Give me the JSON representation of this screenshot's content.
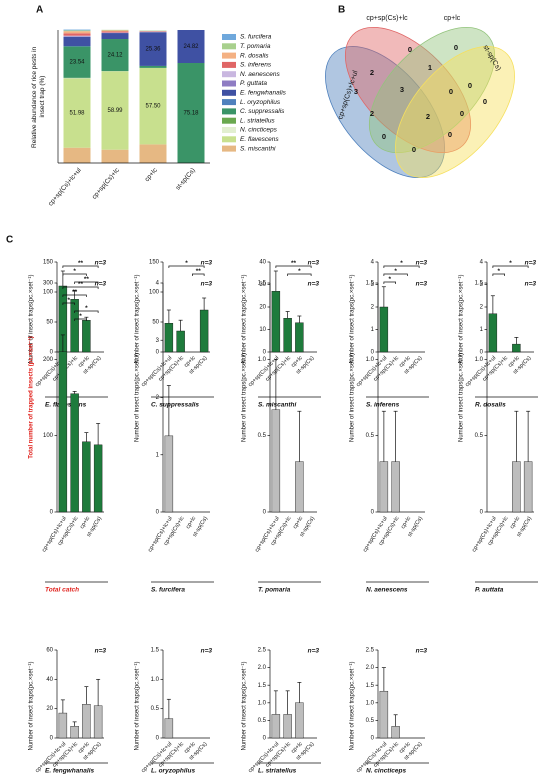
{
  "chart_data": [
    {
      "type": "stacked_bar",
      "panel": "A",
      "ylabel": "Relative abundance of rice pests in insect trap (%)",
      "categories": [
        "cp+sp(Cs)+lc+ul",
        "cp+sp(Cs)+lc",
        "cp+lc",
        "st-sp(Cs)"
      ],
      "ylim": [
        0,
        100
      ],
      "series": [
        {
          "name": "S. furcifera",
          "color": "#6fa8dc",
          "values": [
            0.6,
            0,
            0,
            0
          ]
        },
        {
          "name": "T. pomaria",
          "color": "#a8d08d",
          "values": [
            0.6,
            0.4,
            0.4,
            0
          ]
        },
        {
          "name": "R. dosalis",
          "color": "#f4b183",
          "values": [
            1.6,
            0.8,
            0,
            0
          ]
        },
        {
          "name": "S. inferens",
          "color": "#e06666",
          "values": [
            1.8,
            0.8,
            0.4,
            0
          ]
        },
        {
          "name": "N. aenescens",
          "color": "#c9b7e0",
          "values": [
            0.4,
            0.4,
            0.4,
            0
          ]
        },
        {
          "name": "P. guttata",
          "color": "#8e7cc3",
          "values": [
            0.4,
            0,
            0,
            0
          ]
        },
        {
          "name": "E. fengwhanalis",
          "color": "#3f51a3",
          "values": [
            7.0,
            4.5,
            25.36,
            24.82
          ],
          "value_labels": [
            null,
            null,
            "25.36",
            "24.82"
          ]
        },
        {
          "name": "L. oryzophilus",
          "color": "#4f81bd",
          "values": [
            0.3,
            0,
            0,
            0
          ]
        },
        {
          "name": "C. suppressalis",
          "color": "#3a9467",
          "values": [
            23.54,
            24.12,
            1.5,
            75.18
          ],
          "value_labels": [
            "23.54",
            "24.12",
            null,
            "75.18"
          ]
        },
        {
          "name": "L. striatellus",
          "color": "#6aa84f",
          "values": [
            0.3,
            0,
            0,
            0
          ]
        },
        {
          "name": "N. cincticeps",
          "color": "#e2efd0",
          "values": [
            0.3,
            0.1,
            0,
            0
          ]
        },
        {
          "name": "E. flavescens",
          "color": "#c8e08e",
          "values": [
            51.98,
            58.99,
            57.5,
            0
          ],
          "value_labels": [
            "51.98",
            "58.99",
            "57.50",
            null
          ]
        },
        {
          "name": "S. miscanthi",
          "color": "#e6b883",
          "values": [
            11.5,
            10,
            14,
            0
          ]
        }
      ]
    },
    {
      "type": "venn",
      "panel": "B",
      "sets": [
        {
          "name": "cp+sp(Cs)+lc+ul",
          "color": "#4f81bd"
        },
        {
          "name": "cp+sp(Cs)+lc",
          "color": "#e06666"
        },
        {
          "name": "cp+lc",
          "color": "#93c47d"
        },
        {
          "name": "st-sp(Cs)",
          "color": "#f6e05e"
        }
      ],
      "counts": [
        0,
        0,
        2,
        1,
        0,
        3,
        3,
        0,
        0,
        2,
        2,
        0,
        0,
        0,
        0
      ]
    },
    {
      "type": "bar_error",
      "panel": "C",
      "title": "E. flavescens",
      "ylabel": "Number of insect traps(pc.×set⁻¹)",
      "n_label": "n=3",
      "categories": [
        "cp+sp(Cs)+lc+ul",
        "cp+sp(Cs)+lc",
        "cp+lc",
        "st-sp(Cs)"
      ],
      "values": [
        110,
        88,
        53,
        0
      ],
      "errors": [
        25,
        15,
        5,
        0
      ],
      "ylim": [
        0,
        150
      ],
      "yticks": [
        0,
        50,
        100,
        150
      ],
      "color": "#1e7b3c",
      "comparisons": [
        {
          "pair": [
            0,
            3
          ],
          "label": "**"
        },
        {
          "pair": [
            0,
            2
          ],
          "label": "*"
        },
        {
          "pair": [
            1,
            3
          ],
          "label": "**"
        }
      ]
    },
    {
      "type": "bar_error",
      "title": "C. suppressalis",
      "ylabel": "Number of insect traps(pc.×set⁻¹)",
      "n_label": "n=3",
      "categories": [
        "cp+sp(Cs)+lc+ul",
        "cp+sp(Cs)+lc",
        "cp+lc",
        "st-sp(Cs)"
      ],
      "values": [
        48,
        35,
        0,
        70
      ],
      "errors": [
        22,
        18,
        0,
        20
      ],
      "ylim": [
        0,
        150
      ],
      "yticks": [
        0,
        50,
        100,
        150
      ],
      "color": "#1e7b3c",
      "comparisons": [
        {
          "pair": [
            0,
            3
          ],
          "label": "*"
        },
        {
          "pair": [
            2,
            3
          ],
          "label": "**"
        }
      ]
    },
    {
      "type": "bar_error",
      "title": "S. miscanthi",
      "ylabel": "Number of insect traps(pc.×set⁻¹)",
      "n_label": "n=3",
      "categories": [
        "cp+sp(Cs)+lc+ul",
        "cp+sp(Cs)+lc",
        "cp+lc",
        "st-sp(Cs)"
      ],
      "values": [
        27,
        15,
        13,
        0
      ],
      "errors": [
        9,
        3,
        3,
        0
      ],
      "ylim": [
        0,
        40
      ],
      "yticks": [
        0,
        10,
        20,
        30,
        40
      ],
      "color": "#1e7b3c",
      "comparisons": [
        {
          "pair": [
            0,
            3
          ],
          "label": "**"
        },
        {
          "pair": [
            1,
            3
          ],
          "label": "*"
        }
      ]
    },
    {
      "type": "bar_error",
      "title": "S. inferens",
      "ylabel": "Number of insect traps(pc.×set⁻¹)",
      "n_label": "n=3",
      "categories": [
        "cp+sp(Cs)+lc+ul",
        "cp+sp(Cs)+lc",
        "cp+lc",
        "st-sp(Cs)"
      ],
      "values": [
        2,
        0,
        0,
        0
      ],
      "errors": [
        0.9,
        0,
        0,
        0
      ],
      "ylim": [
        0,
        4
      ],
      "yticks": [
        0,
        1,
        2,
        3,
        4
      ],
      "color": "#1e7b3c",
      "comparisons": [
        {
          "pair": [
            0,
            3
          ],
          "label": "*"
        },
        {
          "pair": [
            0,
            2
          ],
          "label": "*"
        },
        {
          "pair": [
            0,
            1
          ],
          "label": "*"
        }
      ]
    },
    {
      "type": "bar_error",
      "title": "R. dosalis",
      "ylabel": "Number of insect traps(pc.×set⁻¹)",
      "n_label": "n=3",
      "categories": [
        "cp+sp(Cs)+lc+ul",
        "cp+sp(Cs)+lc",
        "cp+lc",
        "st-sp(Cs)"
      ],
      "values": [
        1.7,
        0,
        0.35,
        0
      ],
      "errors": [
        0.8,
        0,
        0.3,
        0
      ],
      "ylim": [
        0,
        4
      ],
      "yticks": [
        0,
        1,
        2,
        3,
        4
      ],
      "color": "#1e7b3c",
      "comparisons": [
        {
          "pair": [
            0,
            3
          ],
          "label": "*"
        },
        {
          "pair": [
            0,
            1
          ],
          "label": "*"
        }
      ]
    },
    {
      "type": "bar_error",
      "title": "Total catch",
      "ylabel": "Total number of trapped insects (pc.×set⁻¹)",
      "n_label": "n=3",
      "text_color": "#e0201b",
      "categories": [
        "cp+sp(Cs)+lc+ul",
        "cp+sp(Cs)+lc",
        "cp+lc",
        "st-sp(Cs)"
      ],
      "values": [
        210,
        155,
        92,
        88
      ],
      "errors": [
        22,
        3,
        12,
        28
      ],
      "ylim": [
        0,
        300
      ],
      "yticks": [
        0,
        100,
        200,
        300
      ],
      "color": "#1e7b3c",
      "comparisons": [
        {
          "pair": [
            0,
            3
          ],
          "label": "**"
        },
        {
          "pair": [
            0,
            2
          ],
          "label": "**"
        },
        {
          "pair": [
            0,
            1
          ],
          "label": "*"
        },
        {
          "pair": [
            1,
            3
          ],
          "label": "*"
        },
        {
          "pair": [
            1,
            2
          ],
          "label": "*"
        }
      ]
    },
    {
      "type": "bar_error",
      "title": "S. furcifera",
      "ylabel": "Number of insect traps(pc.×set⁻¹)",
      "n_label": "n=3",
      "categories": [
        "cp+sp(Cs)+lc+ul",
        "cp+sp(Cs)+lc",
        "cp+lc",
        "st-sp(Cs)"
      ],
      "values": [
        1.33,
        0,
        0,
        0
      ],
      "errors": [
        0.88,
        0,
        0,
        0
      ],
      "ylim": [
        0,
        4
      ],
      "yticks": [
        0,
        1,
        2,
        3,
        4
      ],
      "color": "#bdbdbd",
      "comparisons": []
    },
    {
      "type": "bar_error",
      "title": "T. pomaria",
      "ylabel": "Number of insect traps(pc.×set⁻¹)",
      "n_label": "n=3",
      "categories": [
        "cp+sp(Cs)+lc+ul",
        "cp+sp(Cs)+lc",
        "cp+lc",
        "st-sp(Cs)"
      ],
      "values": [
        0.67,
        0,
        0.33,
        0
      ],
      "errors": [
        0.33,
        0,
        0.33,
        0
      ],
      "ylim": [
        0,
        1.5
      ],
      "yticks": [
        0,
        0.5,
        {
          "value": 1,
          "label": "1.0"
        },
        1.5
      ],
      "color": "#bdbdbd",
      "comparisons": []
    },
    {
      "type": "bar_error",
      "title": "N. aenescens",
      "ylabel": "Number of insect traps(pc.×set⁻¹)",
      "n_label": "n=3",
      "categories": [
        "cp+sp(Cs)+lc+ul",
        "cp+sp(Cs)+lc",
        "cp+lc",
        "st-sp(Cs)"
      ],
      "values": [
        0.33,
        0.33,
        0,
        0
      ],
      "errors": [
        0.33,
        0.33,
        0,
        0
      ],
      "ylim": [
        0,
        1.5
      ],
      "yticks": [
        0,
        0.5,
        {
          "value": 1,
          "label": "1.0"
        },
        1.5
      ],
      "color": "#bdbdbd",
      "comparisons": []
    },
    {
      "type": "bar_error",
      "title": "P. auttata",
      "ylabel": "Number of insect traps(pc.×set⁻¹)",
      "n_label": "n=3",
      "categories": [
        "cp+sp(Cs)+lc+ul",
        "cp+sp(Cs)+lc",
        "cp+lc",
        "st-sp(Cs)"
      ],
      "values": [
        0,
        0,
        0.33,
        0.33
      ],
      "errors": [
        0,
        0,
        0.33,
        0.33
      ],
      "ylim": [
        0,
        1.5
      ],
      "yticks": [
        0,
        0.5,
        {
          "value": 1,
          "label": "1.0"
        },
        1.5
      ],
      "color": "#bdbdbd",
      "comparisons": []
    },
    {
      "type": "bar_error",
      "title": "E. fengwhanalis",
      "ylabel": "Number of insect traps(pc.×set⁻¹)",
      "n_label": "n=3",
      "categories": [
        "cp+sp(Cs)+lc+ul",
        "cp+sp(Cs)+lc",
        "cp+lc",
        "st-sp(Cs)"
      ],
      "values": [
        17,
        8,
        23,
        22
      ],
      "errors": [
        9,
        3,
        12,
        18
      ],
      "ylim": [
        0,
        60
      ],
      "yticks": [
        0,
        20,
        40,
        60
      ],
      "color": "#bdbdbd",
      "comparisons": []
    },
    {
      "type": "bar_error",
      "title": "L. oryzophilus",
      "ylabel": "Number of insect traps(pc.×set⁻¹)",
      "n_label": "n=3",
      "categories": [
        "cp+sp(Cs)+lc+ul",
        "cp+sp(Cs)+lc",
        "cp+lc",
        "st-sp(Cs)"
      ],
      "values": [
        0.33,
        0,
        0,
        0
      ],
      "errors": [
        0.33,
        0,
        0,
        0
      ],
      "ylim": [
        0,
        1.5
      ],
      "yticks": [
        0,
        0.5,
        {
          "value": 1,
          "label": "1.0"
        },
        1.5
      ],
      "color": "#bdbdbd",
      "comparisons": []
    },
    {
      "type": "bar_error",
      "title": "L. striatellus",
      "ylabel": "Number of insect traps(pc.×set⁻¹)",
      "n_label": "n=3",
      "categories": [
        "cp+sp(Cs)+lc+ul",
        "cp+sp(Cs)+lc",
        "cp+lc",
        "st-sp(Cs)"
      ],
      "values": [
        0.67,
        0.67,
        1,
        0
      ],
      "errors": [
        0.67,
        0.67,
        0.58,
        0
      ],
      "ylim": [
        0,
        2.5
      ],
      "yticks": [
        0,
        0.5,
        {
          "value": 1,
          "label": "1.0"
        },
        1.5,
        {
          "value": 2,
          "label": "2.0"
        },
        2.5
      ],
      "color": "#bdbdbd",
      "comparisons": []
    },
    {
      "type": "bar_error",
      "title": "N. cincticeps",
      "ylabel": "Number of insect traps(pc.×set⁻¹)",
      "n_label": "n=3",
      "categories": [
        "cp+sp(Cs)+lc+ul",
        "cp+sp(Cs)+lc",
        "cp+lc",
        "st-sp(Cs)"
      ],
      "values": [
        1.33,
        0.33,
        0,
        0
      ],
      "errors": [
        0.67,
        0.33,
        0,
        0
      ],
      "ylim": [
        0,
        2.5
      ],
      "yticks": [
        0,
        0.5,
        {
          "value": 1,
          "label": "1.0"
        },
        1.5,
        {
          "value": 2,
          "label": "2.0"
        },
        2.5
      ],
      "color": "#bdbdbd",
      "comparisons": []
    }
  ]
}
